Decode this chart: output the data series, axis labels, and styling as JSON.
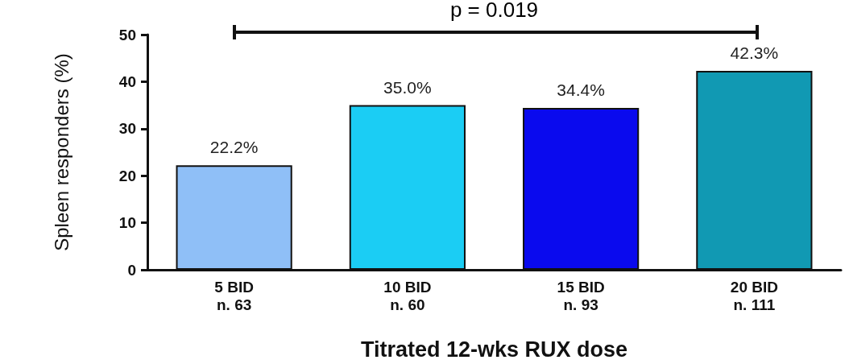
{
  "chart_data": {
    "type": "bar",
    "xlabel": "Titrated 12-wks RUX dose",
    "ylabel": "Spleen responders (%)",
    "categories": [
      "5 BID\nn. 63",
      "10 BID\nn. 60",
      "15 BID\nn. 93",
      "20 BID\nn. 111"
    ],
    "values": [
      22.2,
      35.0,
      34.4,
      42.3
    ],
    "colors": [
      "#8fbff7",
      "#1bcdf4",
      "#0a0aee",
      "#1199b3"
    ],
    "value_labels": [
      "22.2%",
      "35.0%",
      "34.4%",
      "42.3%"
    ],
    "ylim": [
      0,
      50
    ],
    "yticks": [
      0,
      10,
      20,
      30,
      40,
      50
    ],
    "grid": false,
    "annotations": [
      "p = 0.019"
    ]
  }
}
